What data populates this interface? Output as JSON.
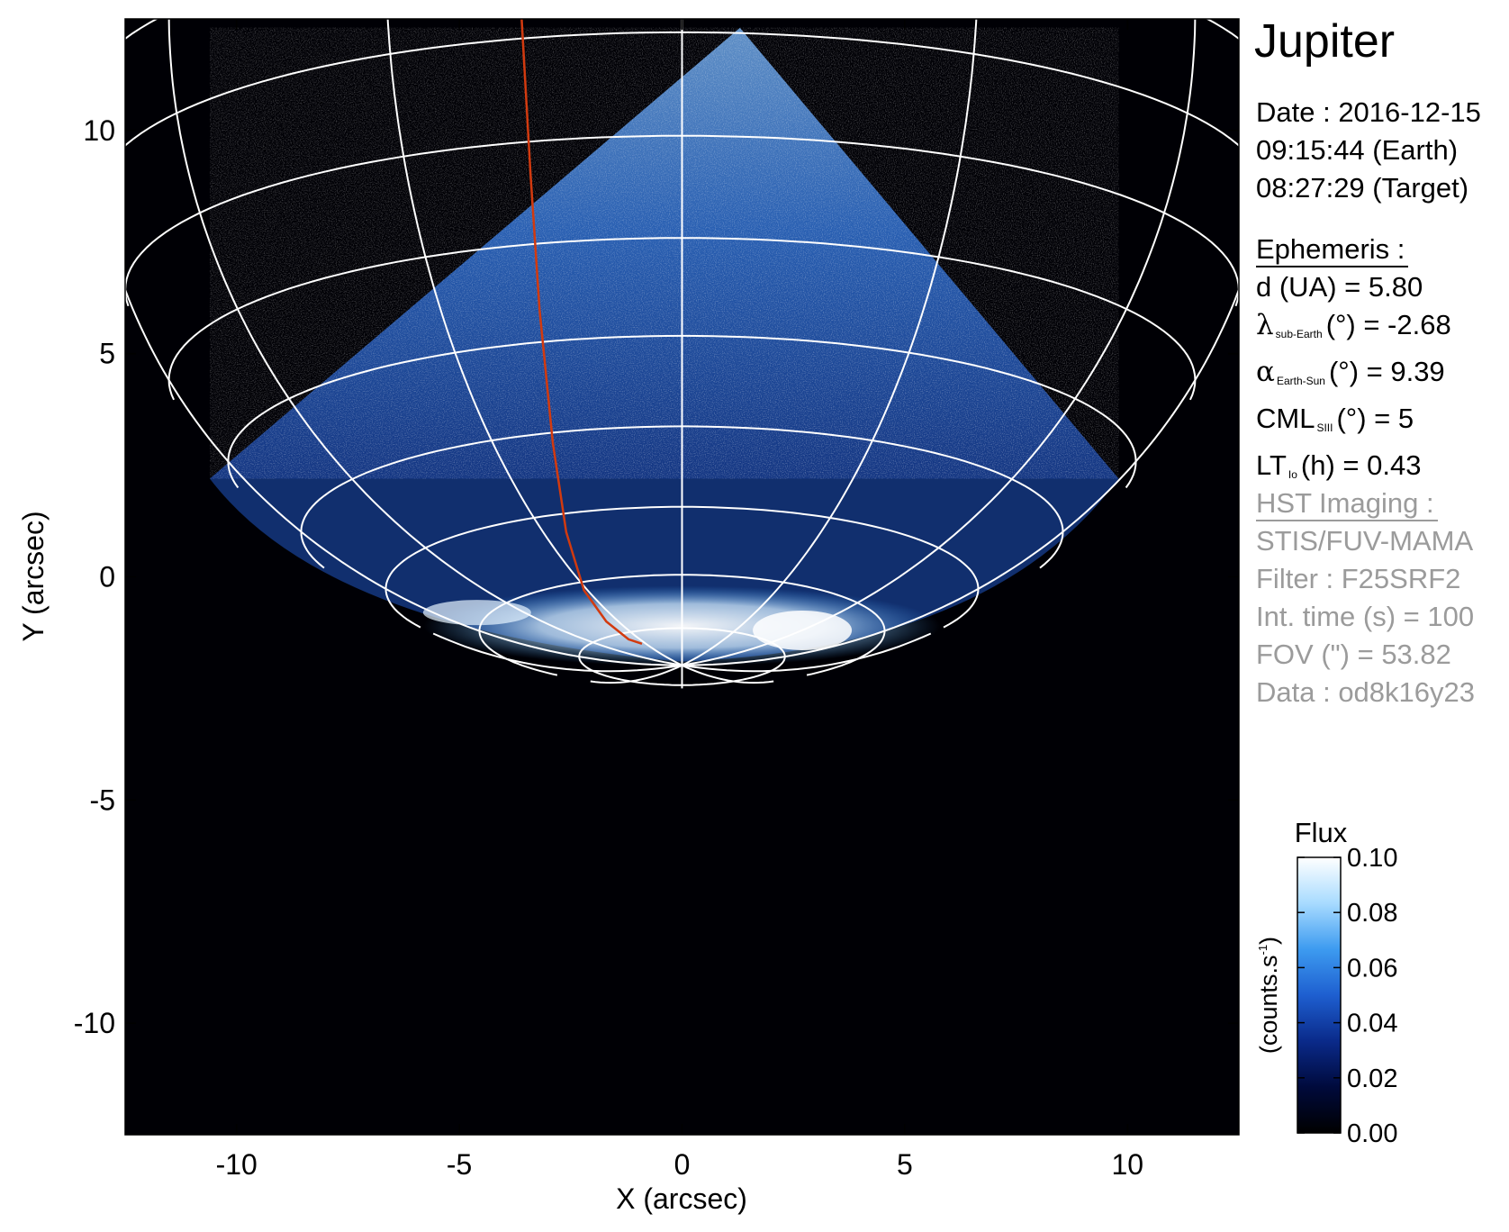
{
  "chart_data": {
    "type": "heatmap",
    "description_title": "Jupiter",
    "xlabel": "X (arcsec)",
    "ylabel": "Y (arcsec)",
    "xlim": [
      -12.5,
      12.5
    ],
    "ylim": [
      -12.5,
      12.5
    ],
    "xticks": [
      -10,
      -5,
      0,
      5,
      10
    ],
    "yticks": [
      -10,
      -5,
      0,
      5,
      10
    ],
    "xtick_labels": [
      "-10",
      "-5",
      "0",
      "5",
      "10"
    ],
    "ytick_labels": [
      "-10",
      "-5",
      "0",
      "5",
      "10"
    ],
    "colorbar": {
      "title": "Flux",
      "label": "(counts.s",
      "label_sup": "-1",
      "label_close": ")",
      "range": [
        0.0,
        0.1
      ],
      "ticks": [
        0.0,
        0.02,
        0.04,
        0.06,
        0.08,
        0.1
      ],
      "tick_labels": [
        "0.00",
        "0.02",
        "0.04",
        "0.06",
        "0.08",
        "0.10"
      ],
      "colormap": [
        "#000000",
        "#000a3c",
        "#0a2a8a",
        "#1e5fd0",
        "#3d9bf0",
        "#a8dbff",
        "#ffffff"
      ]
    },
    "image_region": {
      "wedge_vertices": [
        [
          -10.6,
          2.2
        ],
        [
          1.3,
          12.3
        ],
        [
          9.8,
          2.2
        ]
      ],
      "aurora_center": [
        0.0,
        -1.1
      ],
      "aurora_half_width": 5.8,
      "aurora_half_height": 0.9
    },
    "planet_grid": {
      "center": [
        0.0,
        10.8
      ],
      "radius_x": 13.3,
      "radius_y": 13.3,
      "tilt_b": 0.28,
      "color": "#ffffff"
    },
    "io_footprint": {
      "color": "#d23a0f",
      "points": [
        [
          -3.6,
          12.5
        ],
        [
          -3.4,
          9.0
        ],
        [
          -3.2,
          6.0
        ],
        [
          -2.9,
          3.0
        ],
        [
          -2.6,
          1.0
        ],
        [
          -2.2,
          -0.3
        ],
        [
          -1.7,
          -1.0
        ],
        [
          -1.2,
          -1.4
        ],
        [
          -0.9,
          -1.5
        ]
      ]
    }
  },
  "panel": {
    "title": "Jupiter",
    "date_line": "Date : 2016-12-15",
    "time_earth": "09:15:44 (Earth)",
    "time_target": "08:27:29 (Target)",
    "ephemeris_head": "Ephemeris :",
    "eph_d": "d (UA)    = 5.80",
    "eph_lambda_sym": "λ",
    "eph_lambda_sub": "sub-Earth",
    "eph_lambda_val": "(°) = -2.68",
    "eph_alpha_sym": "α",
    "eph_alpha_sub": "Earth-Sun",
    "eph_alpha_val": "(°) = 9.39",
    "eph_cml_sym": "CML",
    "eph_cml_sub": "SIII",
    "eph_cml_val": "(°) = 5",
    "eph_lt_sym": "LT",
    "eph_lt_sub": "Io",
    "eph_lt_val": "(h) = 0.43",
    "hst_head": "HST Imaging :",
    "hst_instrument": "STIS/FUV-MAMA",
    "hst_filter": "Filter : F25SRF2",
    "hst_int_time": "Int. time (s) = 100",
    "hst_fov": "FOV (\") = 53.82",
    "hst_data": "Data : od8k16y23"
  }
}
